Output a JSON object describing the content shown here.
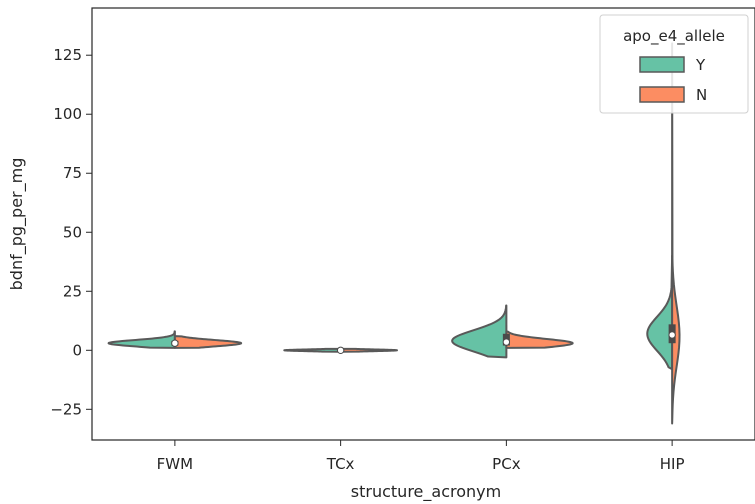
{
  "chart_data": {
    "type": "violin",
    "split": true,
    "xlabel": "structure_acronym",
    "ylabel": "bdnf_pg_per_mg",
    "ylim": [
      -38,
      145
    ],
    "yticks": [
      -25,
      0,
      25,
      50,
      75,
      100,
      125
    ],
    "ytick_labels": [
      "−25",
      "0",
      "25",
      "50",
      "75",
      "100",
      "125"
    ],
    "categories": [
      "FWM",
      "TCx",
      "PCx",
      "HIP"
    ],
    "legend": {
      "title": "apo_e4_allele",
      "position": "top-right",
      "entries": [
        {
          "label": "Y",
          "color": "#66c2a5"
        },
        {
          "label": "N",
          "color": "#fc8d62"
        }
      ]
    },
    "series": [
      {
        "name": "Y",
        "color": "#66c2a5",
        "side": "left",
        "violins": [
          {
            "category": "FWM",
            "min": 1,
            "max": 8,
            "q1": 2.5,
            "median": 3,
            "q3": 4
          },
          {
            "category": "TCx",
            "min": -0.6,
            "max": 0.6,
            "q1": -0.2,
            "median": 0,
            "q3": 0.2
          },
          {
            "category": "PCx",
            "min": -3,
            "max": 19,
            "q1": 2,
            "median": 4,
            "q3": 7
          },
          {
            "category": "HIP",
            "min": -8,
            "max": 40,
            "q1": 3,
            "median": 7,
            "q3": 11
          }
        ]
      },
      {
        "name": "N",
        "color": "#fc8d62",
        "side": "right",
        "violins": [
          {
            "category": "FWM",
            "min": 1,
            "max": 6,
            "q1": 2,
            "median": 3,
            "q3": 3.5
          },
          {
            "category": "TCx",
            "min": -0.6,
            "max": 0.6,
            "q1": -0.2,
            "median": 0,
            "q3": 0.2
          },
          {
            "category": "PCx",
            "min": 1,
            "max": 8,
            "q1": 2,
            "median": 3,
            "q3": 4
          },
          {
            "category": "HIP",
            "min": -31,
            "max": 130,
            "q1": 4,
            "median": 6,
            "q3": 10
          }
        ]
      }
    ]
  }
}
